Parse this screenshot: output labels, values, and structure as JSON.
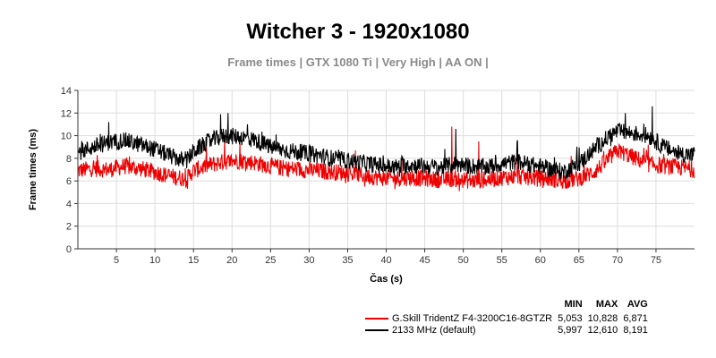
{
  "title": "Witcher 3 - 1920x1080",
  "subtitle": "Frame times | GTX 1080 Ti | Very High | AA ON |",
  "chart_data": {
    "type": "line",
    "title": "Witcher 3 - 1920x1080",
    "subtitle": "Frame times | GTX 1080 Ti | Very High | AA ON |",
    "xlabel": "Čas (s)",
    "ylabel": "Frame times (ms)",
    "xlim": [
      0,
      80
    ],
    "ylim": [
      0,
      14
    ],
    "x_ticks": [
      5,
      10,
      15,
      20,
      25,
      30,
      35,
      40,
      45,
      50,
      55,
      60,
      65,
      70,
      75
    ],
    "y_ticks": [
      0,
      2,
      4,
      6,
      8,
      10,
      12,
      14
    ],
    "grid": true,
    "legend_position": "bottom-right",
    "stat_headers": [
      "MIN",
      "MAX",
      "AVG"
    ],
    "series": [
      {
        "name": "G.Skill TridentZ F4-3200C16-8GTZR",
        "color": "#ee0000",
        "min": "5,053",
        "max": "10,828",
        "avg": "6,871",
        "x": [
          0,
          2,
          4,
          6,
          8,
          10,
          12,
          14,
          15,
          17,
          19,
          21,
          23,
          25,
          27,
          29,
          31,
          33,
          35,
          37,
          39,
          41,
          43,
          45,
          47,
          49,
          51,
          53,
          55,
          57,
          59,
          61,
          63,
          65,
          67,
          69,
          70,
          72,
          74,
          76,
          78,
          80
        ],
        "y": [
          6.9,
          7.1,
          7.0,
          7.3,
          7.1,
          6.8,
          6.4,
          6.2,
          6.9,
          7.4,
          7.7,
          7.8,
          7.6,
          7.3,
          7.1,
          7.0,
          6.9,
          6.8,
          6.7,
          6.5,
          6.3,
          6.2,
          6.3,
          6.2,
          6.1,
          6.2,
          6.0,
          6.1,
          6.3,
          6.4,
          6.3,
          6.2,
          6.0,
          6.2,
          6.8,
          8.0,
          8.7,
          8.1,
          7.5,
          7.3,
          7.2,
          7.0
        ],
        "spikes": [
          [
            2.5,
            8.3
          ],
          [
            14.2,
            5.3
          ],
          [
            19,
            9.8
          ],
          [
            21,
            9.3
          ],
          [
            36,
            8.7
          ],
          [
            37.2,
            5.5
          ],
          [
            42,
            8.3
          ],
          [
            48.5,
            10.8
          ],
          [
            49.5,
            5.1
          ],
          [
            52,
            9.5
          ],
          [
            57,
            8.5
          ],
          [
            64,
            8.2
          ],
          [
            74,
            9.2
          ]
        ]
      },
      {
        "name": "2133 MHz (default)",
        "color": "#000000",
        "min": "5,997",
        "max": "12,610",
        "avg": "8,191",
        "x": [
          0,
          2,
          4,
          6,
          8,
          10,
          12,
          14,
          15,
          17,
          19,
          21,
          23,
          25,
          27,
          29,
          31,
          33,
          35,
          37,
          39,
          41,
          43,
          45,
          47,
          49,
          51,
          53,
          55,
          57,
          59,
          61,
          63,
          65,
          67,
          69,
          70,
          72,
          74,
          76,
          78,
          80
        ],
        "y": [
          8.5,
          9.0,
          9.4,
          9.6,
          9.2,
          8.8,
          8.2,
          7.7,
          8.6,
          9.5,
          10.0,
          9.9,
          9.6,
          9.0,
          8.7,
          8.5,
          8.3,
          8.0,
          7.8,
          7.6,
          7.4,
          7.2,
          7.4,
          7.3,
          7.2,
          7.5,
          7.3,
          7.2,
          7.5,
          7.7,
          7.4,
          7.1,
          6.8,
          7.5,
          8.8,
          10.0,
          10.4,
          10.2,
          10.0,
          9.0,
          8.4,
          8.3
        ],
        "spikes": [
          [
            4,
            11.2
          ],
          [
            18.5,
            11.9
          ],
          [
            19.5,
            12.0
          ],
          [
            22,
            11.0
          ],
          [
            49,
            10.6
          ],
          [
            57,
            9.6
          ],
          [
            71,
            12.0
          ],
          [
            74.5,
            12.6
          ],
          [
            80,
            8.6
          ]
        ]
      }
    ]
  }
}
